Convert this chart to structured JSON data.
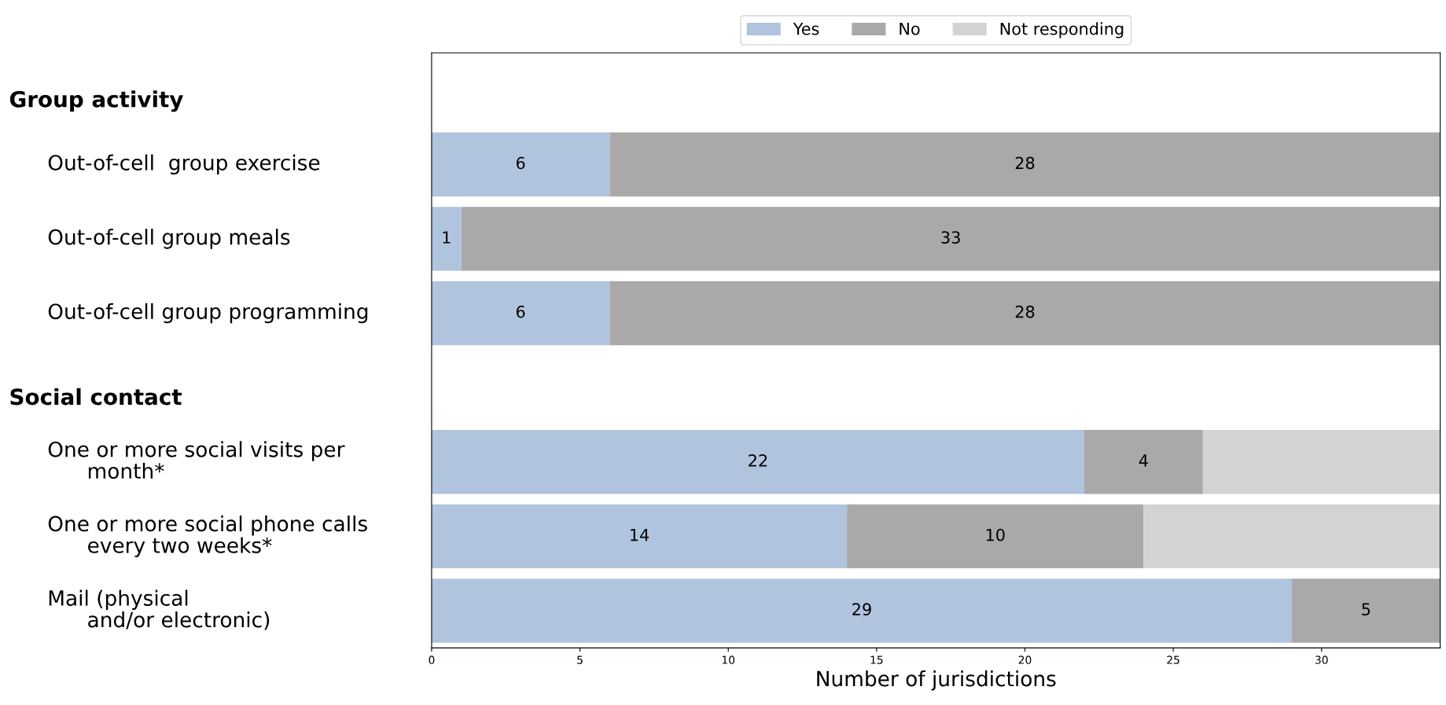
{
  "chart_data": {
    "type": "bar",
    "orientation": "horizontal",
    "stacked": true,
    "annotations": [
      "Group activity",
      "Social contact"
    ],
    "categories": [
      null,
      "Out-of-cell  group exercise",
      "Out-of-cell group meals",
      "Out-of-cell group programming",
      null,
      "One or more social visits per\n      month*",
      "One or more social phone calls\n      every two weeks*",
      "Mail (physical\n      and/or electronic)"
    ],
    "series": [
      {
        "name": "Yes",
        "color": "#b0c4de",
        "values": [
          null,
          6,
          1,
          6,
          null,
          22,
          14,
          29
        ],
        "value_labels": [
          null,
          "6",
          "1",
          "6",
          null,
          "22",
          "14",
          "29"
        ]
      },
      {
        "name": "No",
        "color": "#a9a9a9",
        "values": [
          null,
          28,
          33,
          28,
          null,
          4,
          10,
          5
        ],
        "value_labels": [
          null,
          "28",
          "33",
          "28",
          null,
          "4",
          "10",
          "5"
        ]
      },
      {
        "name": "Not responding",
        "color": "#d3d3d3",
        "values": [
          null,
          0,
          0,
          0,
          null,
          8,
          10,
          0
        ]
      }
    ],
    "xlabel": "Number of jurisdictions",
    "xlim": [
      0,
      34
    ],
    "xticks": [
      0,
      5,
      10,
      15,
      20,
      25,
      30
    ],
    "legend": "top",
    "grid": false
  }
}
